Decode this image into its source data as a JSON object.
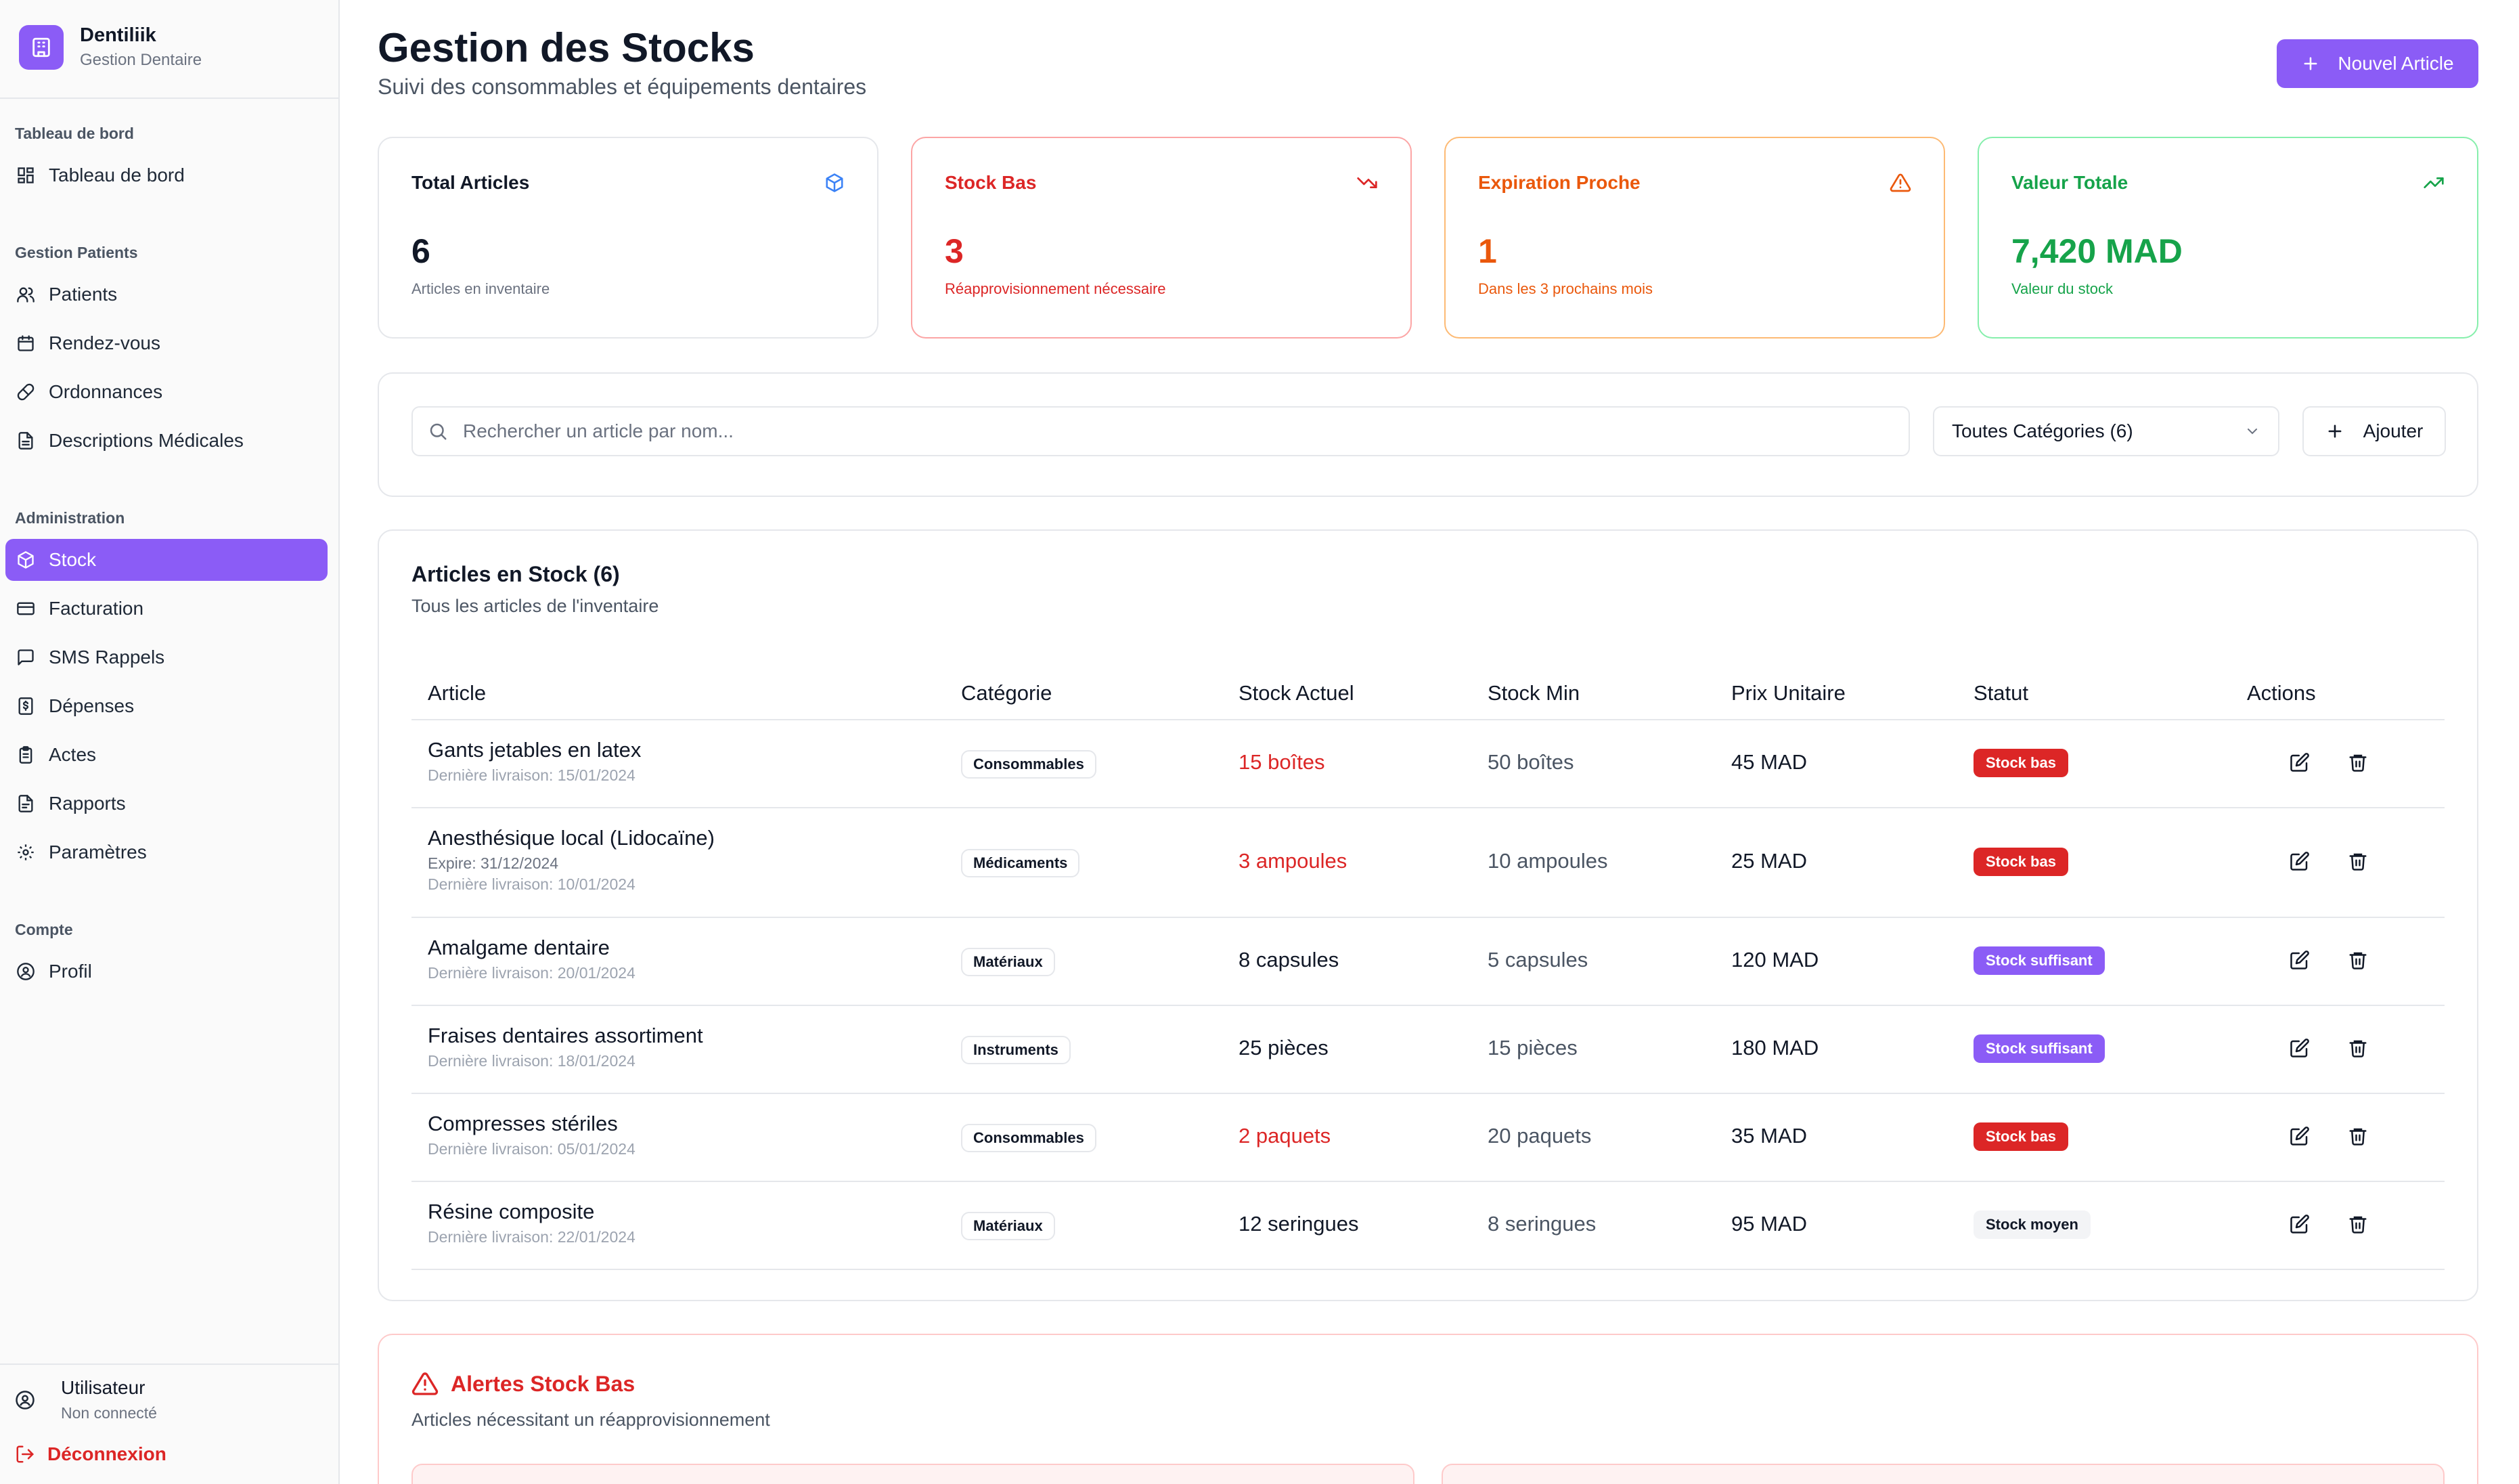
{
  "brand": {
    "name": "Dentiliik",
    "subtitle": "Gestion Dentaire",
    "logo_icon": "clinic-icon",
    "accent": "#8b5cf6"
  },
  "sidebar": {
    "sections": [
      {
        "title": "Tableau de bord",
        "items": [
          {
            "label": "Tableau de bord",
            "icon": "dashboard-icon"
          }
        ]
      },
      {
        "title": "Gestion Patients",
        "items": [
          {
            "label": "Patients",
            "icon": "users-icon"
          },
          {
            "label": "Rendez-vous",
            "icon": "calendar-icon"
          },
          {
            "label": "Ordonnances",
            "icon": "pill-icon"
          },
          {
            "label": "Descriptions Médicales",
            "icon": "document-icon"
          }
        ]
      },
      {
        "title": "Administration",
        "items": [
          {
            "label": "Stock",
            "icon": "box-icon",
            "active": true
          },
          {
            "label": "Facturation",
            "icon": "credit-card-icon"
          },
          {
            "label": "SMS Rappels",
            "icon": "message-icon"
          },
          {
            "label": "Dépenses",
            "icon": "receipt-icon"
          },
          {
            "label": "Actes",
            "icon": "clipboard-icon"
          },
          {
            "label": "Rapports",
            "icon": "report-icon"
          },
          {
            "label": "Paramètres",
            "icon": "gear-icon"
          }
        ]
      },
      {
        "title": "Compte",
        "items": [
          {
            "label": "Profil",
            "icon": "user-circle-icon"
          }
        ]
      }
    ],
    "user": {
      "name": "Utilisateur",
      "status": "Non connecté"
    },
    "logout_label": "Déconnexion"
  },
  "header": {
    "title": "Gestion des Stocks",
    "subtitle": "Suivi des consommables et équipements dentaires",
    "new_button": "Nouvel Article"
  },
  "stats": [
    {
      "title": "Total Articles",
      "value": "6",
      "note": "Articles en inventaire",
      "icon": "box-icon",
      "color": "#111827"
    },
    {
      "title": "Stock Bas",
      "value": "3",
      "note": "Réapprovisionnement nécessaire",
      "icon": "trending-down-icon",
      "color": "#dc2626"
    },
    {
      "title": "Expiration Proche",
      "value": "1",
      "note": "Dans les 3 prochains mois",
      "icon": "warning-icon",
      "color": "#ea580c"
    },
    {
      "title": "Valeur Totale",
      "value": "7,420 MAD",
      "note": "Valeur du stock",
      "icon": "trending-up-icon",
      "color": "#16a34a"
    }
  ],
  "filters": {
    "search_placeholder": "Rechercher un article par nom...",
    "category_selected": "Toutes Catégories (6)",
    "add_button": "Ajouter"
  },
  "table": {
    "title": "Articles en Stock (6)",
    "subtitle": "Tous les articles de l'inventaire",
    "columns": [
      "Article",
      "Catégorie",
      "Stock Actuel",
      "Stock Min",
      "Prix Unitaire",
      "Statut",
      "Actions"
    ],
    "rows": [
      {
        "name": "Gants jetables en latex",
        "expire": "",
        "delivery": "Dernière livraison: 15/01/2024",
        "category": "Consommables",
        "stock": "15 boîtes",
        "stock_low": true,
        "min": "50 boîtes",
        "price": "45 MAD",
        "status": "Stock bas",
        "status_kind": "red"
      },
      {
        "name": "Anesthésique local (Lidocaïne)",
        "expire": "Expire: 31/12/2024",
        "delivery": "Dernière livraison: 10/01/2024",
        "category": "Médicaments",
        "stock": "3 ampoules",
        "stock_low": true,
        "min": "10 ampoules",
        "price": "25 MAD",
        "status": "Stock bas",
        "status_kind": "red"
      },
      {
        "name": "Amalgame dentaire",
        "expire": "",
        "delivery": "Dernière livraison: 20/01/2024",
        "category": "Matériaux",
        "stock": "8 capsules",
        "stock_low": false,
        "min": "5 capsules",
        "price": "120 MAD",
        "status": "Stock suffisant",
        "status_kind": "purple"
      },
      {
        "name": "Fraises dentaires assortiment",
        "expire": "",
        "delivery": "Dernière livraison: 18/01/2024",
        "category": "Instruments",
        "stock": "25 pièces",
        "stock_low": false,
        "min": "15 pièces",
        "price": "180 MAD",
        "status": "Stock suffisant",
        "status_kind": "purple"
      },
      {
        "name": "Compresses stériles",
        "expire": "",
        "delivery": "Dernière livraison: 05/01/2024",
        "category": "Consommables",
        "stock": "2 paquets",
        "stock_low": true,
        "min": "20 paquets",
        "price": "35 MAD",
        "status": "Stock bas",
        "status_kind": "red"
      },
      {
        "name": "Résine composite",
        "expire": "",
        "delivery": "Dernière livraison: 22/01/2024",
        "category": "Matériaux",
        "stock": "12 seringues",
        "stock_low": false,
        "min": "8 seringues",
        "price": "95 MAD",
        "status": "Stock moyen",
        "status_kind": "gray"
      }
    ]
  },
  "alerts": {
    "title": "Alertes Stock Bas",
    "subtitle": "Articles nécessitant un réapprovisionnement"
  }
}
